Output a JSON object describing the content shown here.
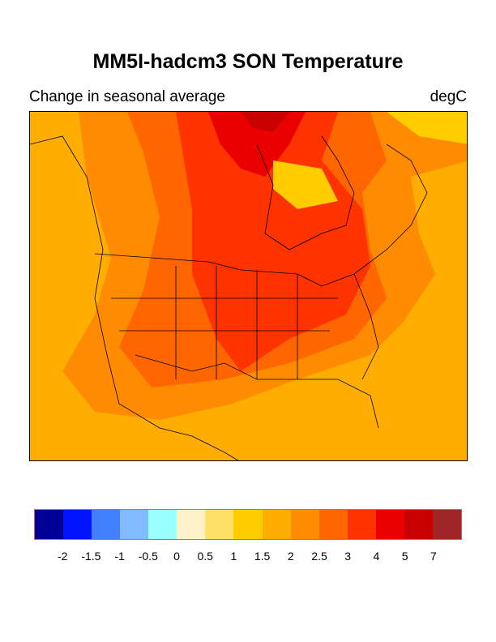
{
  "title": "MM5I-hadcm3 SON Temperature",
  "subtitle_left": "Change in seasonal average",
  "subtitle_right": "degC",
  "colorbar": {
    "colors": [
      "#000096",
      "#0014FF",
      "#4080FF",
      "#80BBFF",
      "#99FFFF",
      "#FFF2C8",
      "#FFE066",
      "#FFCC00",
      "#FFAD00",
      "#FF8C00",
      "#FF6600",
      "#FF3300",
      "#EB0000",
      "#C80000",
      "#9E2626"
    ],
    "labels": [
      "-2",
      "-1.5",
      "-1",
      "-0.5",
      "0",
      "0.5",
      "1",
      "1.5",
      "2",
      "2.5",
      "3",
      "4",
      "5",
      "7"
    ]
  }
}
